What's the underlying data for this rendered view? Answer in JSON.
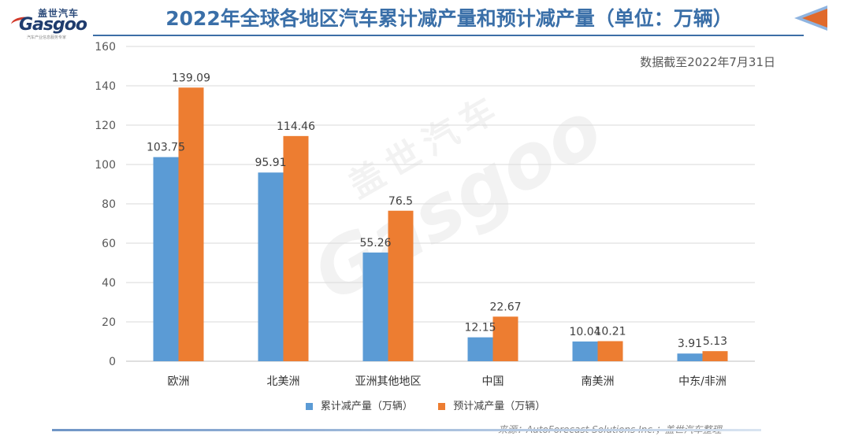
{
  "logo": {
    "cn": "盖世汽车",
    "en": "Gasgoo",
    "sub": "汽车产业信息服务专家"
  },
  "watermark": {
    "cn": "盖世汽车",
    "en": "Gasgoo"
  },
  "note": "数据截至2022年7月31日",
  "source": "来源：AutoForecast Solutions Inc.；盖世汽车整理",
  "colors": {
    "title": "#3a6fa8",
    "series1": "#5b9bd5",
    "series2": "#ed7d31",
    "grid": "#d9d9d9"
  },
  "chart_data": {
    "type": "bar",
    "title": "2022年全球各地区汽车累计减产量和预计减产量（单位：万辆）",
    "categories": [
      "欧洲",
      "北美洲",
      "亚洲其他地区",
      "中国",
      "南美洲",
      "中东/非洲"
    ],
    "series": [
      {
        "name": "累计减产量（万辆）",
        "values": [
          103.75,
          95.91,
          55.26,
          12.15,
          10.04,
          3.91
        ],
        "labels": [
          "103.75",
          "95.91",
          "55.26",
          "12.15",
          "10.04",
          "3.91"
        ]
      },
      {
        "name": "预计减产量（万辆）",
        "values": [
          139.09,
          114.46,
          76.5,
          22.67,
          10.21,
          5.13
        ],
        "labels": [
          "139.09",
          "114.46",
          "76.5",
          "22.67",
          "10.21",
          "5.13"
        ]
      }
    ],
    "yticks": [
      "0",
      "20",
      "40",
      "60",
      "80",
      "100",
      "120",
      "140",
      "160"
    ],
    "ylim": [
      0,
      160
    ],
    "grid": true,
    "legend_position": "bottom"
  }
}
